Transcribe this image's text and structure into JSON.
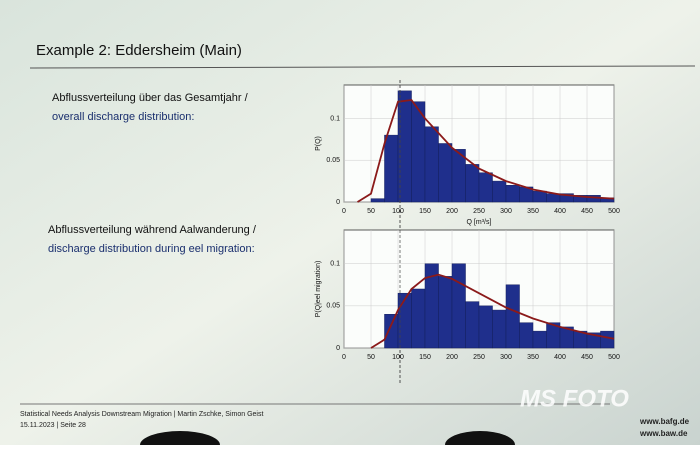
{
  "slide": {
    "title": "Example 2: Eddersheim (Main)",
    "text1": [
      "Abflussverteilung über das Gesamtjahr /",
      "overall discharge distribution:"
    ],
    "text2": [
      "Abflussverteilung während Aalwanderung /",
      "discharge distribution during eel migration:"
    ],
    "footer": [
      "Statistical Needs Analysis Downstream Migration | Martin Zschke, Simon Geist",
      "15.11.2023 | Seite 28"
    ],
    "links": [
      "www.bafg.de",
      "www.baw.de"
    ],
    "watermark": "MS FOTO"
  },
  "chart_data": [
    {
      "type": "histogram",
      "ylabel": "P(Q)",
      "xlabel": "Q [m³/s]",
      "color": "#1f2f8c",
      "bins": [
        50,
        75,
        100,
        125,
        150,
        175,
        200,
        225,
        250,
        275,
        300,
        325,
        350,
        375,
        400,
        425,
        450,
        475,
        500
      ],
      "values": [
        0.004,
        0.08,
        0.133,
        0.12,
        0.09,
        0.07,
        0.063,
        0.045,
        0.035,
        0.025,
        0.02,
        0.018,
        0.013,
        0.01,
        0.01,
        0.008,
        0.008,
        0.005
      ],
      "fit": {
        "color": "#8b1a1a",
        "x": [
          25,
          50,
          75,
          100,
          125,
          150,
          200,
          250,
          300,
          350,
          400,
          450,
          500
        ],
        "values": [
          0,
          0.01,
          0.07,
          0.12,
          0.122,
          0.1,
          0.065,
          0.04,
          0.025,
          0.015,
          0.009,
          0.006,
          0.004
        ]
      },
      "xlim": [
        0,
        500
      ],
      "xticks": [
        0,
        50,
        100,
        150,
        200,
        250,
        300,
        350,
        400,
        450,
        500
      ],
      "ylim": [
        0,
        0.14
      ],
      "yticks": [
        0,
        0.05,
        0.1
      ],
      "grid": true
    },
    {
      "type": "histogram",
      "ylabel": "P(Q|eel migration)",
      "color": "#1f2f8c",
      "bins": [
        75,
        100,
        125,
        150,
        175,
        200,
        225,
        250,
        275,
        300,
        325,
        350,
        375,
        400,
        425,
        450,
        475,
        500
      ],
      "values": [
        0.04,
        0.065,
        0.07,
        0.1,
        0.085,
        0.1,
        0.055,
        0.05,
        0.045,
        0.075,
        0.03,
        0.02,
        0.03,
        0.025,
        0.02,
        0.018,
        0.02
      ],
      "fit": {
        "color": "#8b1a1a",
        "x": [
          50,
          75,
          100,
          125,
          150,
          175,
          200,
          250,
          300,
          350,
          400,
          450,
          500
        ],
        "values": [
          0,
          0.01,
          0.045,
          0.07,
          0.083,
          0.087,
          0.082,
          0.065,
          0.048,
          0.035,
          0.025,
          0.017,
          0.011
        ]
      },
      "xlim": [
        0,
        500
      ],
      "xticks": [
        0,
        50,
        100,
        150,
        200,
        250,
        300,
        350,
        400,
        450,
        500
      ],
      "ylim": [
        0,
        0.14
      ],
      "yticks": [
        0,
        0.05,
        0.1
      ],
      "grid": true
    }
  ]
}
